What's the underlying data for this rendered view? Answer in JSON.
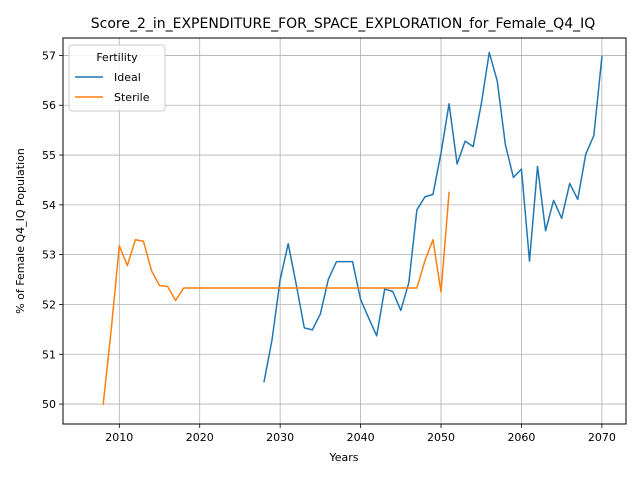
{
  "chart_data": {
    "type": "line",
    "title": "Score_2_in_EXPENDITURE_FOR_SPACE_EXPLORATION_for_Female_Q4_IQ",
    "xlabel": "Years",
    "ylabel": "% of Female Q4_IQ Population",
    "xlim": [
      2003,
      2073
    ],
    "ylim": [
      49.6,
      57.35
    ],
    "xticks": [
      2010,
      2020,
      2030,
      2040,
      2050,
      2060,
      2070
    ],
    "yticks": [
      50,
      51,
      52,
      53,
      54,
      55,
      56,
      57
    ],
    "grid": true,
    "legend": {
      "title": "Fertility",
      "placement": "upper-left"
    },
    "series": [
      {
        "name": "Ideal",
        "color": "#1f77b4",
        "x": [
          2028,
          2029,
          2030,
          2031,
          2032,
          2033,
          2034,
          2035,
          2036,
          2037,
          2038,
          2039,
          2040,
          2041,
          2042,
          2043,
          2044,
          2045,
          2046,
          2047,
          2048,
          2049,
          2050,
          2051,
          2052,
          2053,
          2054,
          2055,
          2056,
          2057,
          2058,
          2059,
          2060,
          2061,
          2062,
          2063,
          2064,
          2065,
          2066,
          2067,
          2068,
          2069,
          2070
        ],
        "values": [
          50.45,
          51.3,
          52.5,
          53.22,
          52.4,
          51.53,
          51.49,
          51.81,
          52.51,
          52.86,
          52.86,
          52.86,
          52.1,
          51.73,
          51.37,
          52.31,
          52.26,
          51.88,
          52.44,
          53.9,
          54.16,
          54.21,
          55.04,
          56.03,
          54.82,
          55.28,
          55.17,
          56.02,
          57.06,
          56.48,
          55.21,
          54.55,
          54.72,
          52.87,
          54.77,
          53.48,
          54.09,
          53.73,
          54.43,
          54.11,
          55.02,
          55.39,
          56.97
        ]
      },
      {
        "name": "Sterile",
        "color": "#ff7f0e",
        "x": [
          2008,
          2009,
          2010,
          2011,
          2012,
          2013,
          2014,
          2015,
          2016,
          2017,
          2018,
          2019,
          2020,
          2021,
          2022,
          2023,
          2024,
          2025,
          2026,
          2027,
          2028,
          2029,
          2030,
          2031,
          2032,
          2033,
          2034,
          2035,
          2036,
          2037,
          2038,
          2039,
          2040,
          2041,
          2042,
          2043,
          2044,
          2045,
          2046,
          2047,
          2048,
          2049,
          2050,
          2051
        ],
        "values": [
          50.0,
          51.5,
          53.18,
          52.78,
          53.3,
          53.27,
          52.68,
          52.38,
          52.36,
          52.08,
          52.33,
          52.33,
          52.33,
          52.33,
          52.33,
          52.33,
          52.33,
          52.33,
          52.33,
          52.33,
          52.33,
          52.33,
          52.33,
          52.33,
          52.33,
          52.33,
          52.33,
          52.33,
          52.33,
          52.33,
          52.33,
          52.33,
          52.33,
          52.33,
          52.33,
          52.33,
          52.33,
          52.33,
          52.33,
          52.33,
          52.88,
          53.3,
          52.25,
          54.25
        ]
      }
    ]
  }
}
